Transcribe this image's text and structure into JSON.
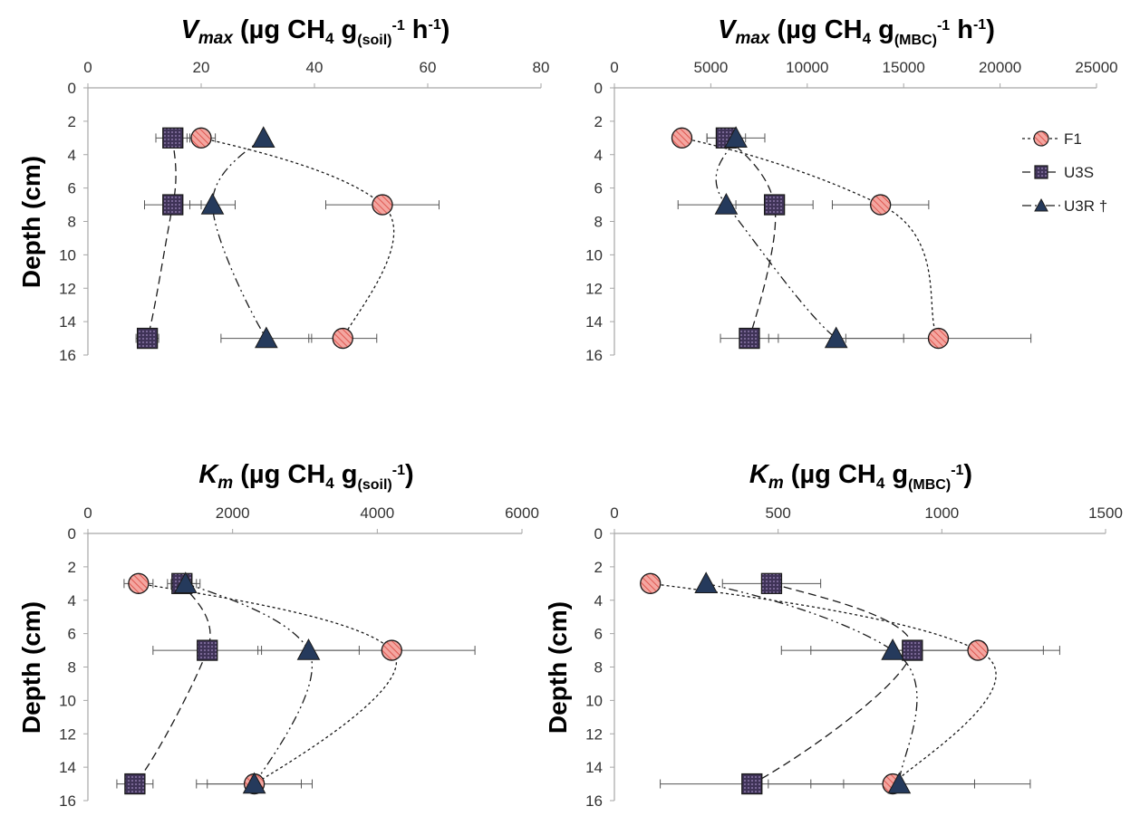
{
  "chart_data": [
    {
      "type": "scatter",
      "title": {
        "symbol": "V",
        "sub": "max",
        "text": " (µg CH",
        "sub2": "4",
        "text2": " g",
        "sub3": "(soil)",
        "sup": "-1",
        "text3": " h",
        "sup2": "-1",
        "text4": ")"
      },
      "ylabel": "Depth (cm)",
      "xlim": [
        0,
        80
      ],
      "ylim": [
        0,
        16
      ],
      "xticks": [
        "0",
        "20",
        "40",
        "60",
        "80"
      ],
      "yticks": [
        "0",
        "2",
        "4",
        "6",
        "8",
        "10",
        "12",
        "14",
        "16"
      ],
      "series": [
        {
          "name": "F1",
          "marker": "circle",
          "x": [
            20,
            52,
            45
          ],
          "y": [
            3,
            7,
            15
          ],
          "err": [
            2.5,
            10,
            6
          ]
        },
        {
          "name": "U3S",
          "marker": "square",
          "x": [
            15,
            15,
            10.5
          ],
          "y": [
            3,
            7,
            15
          ],
          "err": [
            3,
            5,
            2
          ]
        },
        {
          "name": "U3R †",
          "marker": "triangle",
          "x": [
            31,
            22,
            31.5
          ],
          "y": [
            3,
            7,
            15
          ],
          "err": [
            0,
            4,
            8
          ]
        }
      ]
    },
    {
      "type": "scatter",
      "title": {
        "symbol": "V",
        "sub": "max",
        "text": " (µg CH",
        "sub2": "4",
        "text2": " g",
        "sub3": "(MBC)",
        "sup": "-1",
        "text3": " h",
        "sup2": "-1",
        "text4": ")"
      },
      "ylabel": "",
      "xlim": [
        0,
        25000
      ],
      "ylim": [
        0,
        16
      ],
      "xticks": [
        "0",
        "5000",
        "10000",
        "15000",
        "20000",
        "25000"
      ],
      "yticks": [
        "0",
        "2",
        "4",
        "6",
        "8",
        "10",
        "12",
        "14",
        "16"
      ],
      "series": [
        {
          "name": "F1",
          "marker": "circle",
          "x": [
            3500,
            13800,
            16800
          ],
          "y": [
            3,
            7,
            15
          ],
          "err": [
            0,
            2500,
            4800
          ]
        },
        {
          "name": "U3S",
          "marker": "square",
          "x": [
            5800,
            8300,
            7000
          ],
          "y": [
            3,
            7,
            15
          ],
          "err": [
            1000,
            2000,
            1500
          ]
        },
        {
          "name": "U3R †",
          "marker": "triangle",
          "x": [
            6300,
            5800,
            11500
          ],
          "y": [
            3,
            7,
            15
          ],
          "err": [
            1500,
            2500,
            3500
          ]
        }
      ]
    },
    {
      "type": "scatter",
      "title": {
        "symbol": "K",
        "sub": "m",
        "text": " (µg CH",
        "sub2": "4",
        "text2": " g",
        "sub3": "(soil)",
        "sup": "-1",
        "text3": ")"
      },
      "ylabel": "Depth (cm)",
      "xlim": [
        0,
        6000
      ],
      "ylim": [
        0,
        16
      ],
      "xticks": [
        "0",
        "2000",
        "4000",
        "6000"
      ],
      "yticks": [
        "0",
        "2",
        "4",
        "6",
        "8",
        "10",
        "12",
        "14",
        "16"
      ],
      "series": [
        {
          "name": "F1",
          "marker": "circle",
          "x": [
            700,
            4200,
            2300
          ],
          "y": [
            3,
            7,
            15
          ],
          "err": [
            200,
            1150,
            800
          ]
        },
        {
          "name": "U3S",
          "marker": "square",
          "x": [
            1300,
            1650,
            650
          ],
          "y": [
            3,
            7,
            15
          ],
          "err": [
            200,
            750,
            250
          ]
        },
        {
          "name": "U3R †",
          "marker": "triangle",
          "x": [
            1350,
            3050,
            2300
          ],
          "y": [
            3,
            7,
            15
          ],
          "err": [
            200,
            700,
            650
          ]
        }
      ]
    },
    {
      "type": "scatter",
      "title": {
        "symbol": "K",
        "sub": "m",
        "text": " (µg CH",
        "sub2": "4",
        "text2": " g",
        "sub3": "(MBC)",
        "sup": "-1",
        "text3": ")"
      },
      "ylabel": "Depth (cm)",
      "xlim": [
        0,
        1500
      ],
      "ylim": [
        0,
        16
      ],
      "xticks": [
        "0",
        "500",
        "1000",
        "1500"
      ],
      "yticks": [
        "0",
        "2",
        "4",
        "6",
        "8",
        "10",
        "12",
        "14",
        "16"
      ],
      "series": [
        {
          "name": "F1",
          "marker": "circle",
          "x": [
            110,
            1110,
            850
          ],
          "y": [
            3,
            7,
            15
          ],
          "err": [
            0,
            250,
            250
          ]
        },
        {
          "name": "U3S",
          "marker": "square",
          "x": [
            480,
            910,
            420
          ],
          "y": [
            3,
            7,
            15
          ],
          "err": [
            150,
            400,
            280
          ]
        },
        {
          "name": "U3R †",
          "marker": "triangle",
          "x": [
            280,
            850,
            870
          ],
          "y": [
            3,
            7,
            15
          ],
          "err": [
            0,
            250,
            400
          ]
        }
      ]
    }
  ],
  "legend": [
    {
      "name": "F1",
      "marker": "circle"
    },
    {
      "name": "U3S",
      "marker": "square"
    },
    {
      "name": "U3R †",
      "marker": "triangle"
    }
  ],
  "colors": {
    "F1_fill": "#f4a6a0",
    "F1_hatch": "#d9453e",
    "U3S_fill": "#3f3357",
    "U3S_dots": "#a08ac0",
    "U3R_fill": "#253a5c",
    "axis": "#a6a6a6",
    "marker_stroke": "#1a1a1a"
  }
}
